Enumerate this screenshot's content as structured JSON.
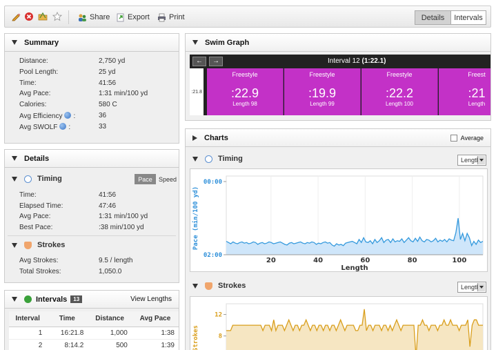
{
  "toolbar": {
    "share_label": "Share",
    "export_label": "Export",
    "print_label": "Print",
    "details_label": "Details",
    "intervals_label": "Intervals",
    "active_tab": "Details"
  },
  "summary": {
    "title": "Summary",
    "rows": [
      {
        "label": "Distance:",
        "value": "2,750 yd"
      },
      {
        "label": "Pool Length:",
        "value": "25 yd"
      },
      {
        "label": "Time:",
        "value": "41:56"
      },
      {
        "label": "Avg Pace:",
        "value": "1:31 min/100 yd"
      },
      {
        "label": "Calories:",
        "value": "580 C"
      },
      {
        "label": "Avg Efficiency",
        "suffix": ":",
        "value": "36"
      },
      {
        "label": "Avg SWOLF",
        "suffix": ":",
        "value": "33"
      }
    ]
  },
  "details": {
    "title": "Details",
    "timing": {
      "title": "Timing",
      "pace_label": "Pace",
      "speed_label": "Speed",
      "rows": [
        {
          "label": "Time:",
          "value": "41:56"
        },
        {
          "label": "Elapsed Time:",
          "value": "47:46"
        },
        {
          "label": "Avg Pace:",
          "value": "1:31 min/100 yd"
        },
        {
          "label": "Best Pace:",
          "value": ":38 min/100 yd"
        }
      ]
    },
    "strokes": {
      "title": "Strokes",
      "rows": [
        {
          "label": "Avg Strokes:",
          "value": "9.5 / length"
        },
        {
          "label": "Total Strokes:",
          "value": "1,050.0"
        }
      ]
    }
  },
  "intervals": {
    "title": "Intervals",
    "count": "13",
    "view_lengths_label": "View Lengths",
    "columns": [
      "Interval",
      "Time",
      "Distance",
      "Avg Pace"
    ],
    "rows": [
      [
        "1",
        "16:21.8",
        "1,000",
        "1:38"
      ],
      [
        "2",
        "8:14.2",
        "500",
        "1:39"
      ]
    ]
  },
  "swim_graph": {
    "title": "Swim Graph",
    "interval_prefix": "Interval 12 ",
    "interval_time": "(1:22.1)",
    "first_cell_time": ":21.8",
    "cells": [
      {
        "stroke": "Freestyle",
        "time": ":22.9",
        "length": "Length 98"
      },
      {
        "stroke": "Freestyle",
        "time": ":19.9",
        "length": "Length 99"
      },
      {
        "stroke": "Freestyle",
        "time": ":22.2",
        "length": "Length 100"
      },
      {
        "stroke": "Freest",
        "time": ":21",
        "length": "Length"
      }
    ]
  },
  "charts": {
    "title": "Charts",
    "average_label": "Average",
    "timing": {
      "title": "Timing",
      "dropdown_value": "Length",
      "ylabel": "Pace (min/100 yd)",
      "xlabel": "Length",
      "y_ticks": [
        "00:00",
        "02:00"
      ],
      "x_ticks": [
        "20",
        "40",
        "60",
        "80",
        "100"
      ]
    },
    "strokes": {
      "title": "Strokes",
      "dropdown_value": "Length",
      "ylabel": "Strokes",
      "y_ticks": [
        "12",
        "8"
      ]
    }
  },
  "chart_data": [
    {
      "type": "area",
      "ylabel": "Pace (min/100 yd)",
      "xlabel": "Length",
      "xlim": [
        1,
        110
      ],
      "ylim_seconds": [
        0,
        120
      ],
      "y_tick_values_seconds": [
        0,
        120
      ],
      "x_tick_values": [
        20,
        40,
        60,
        80,
        100
      ],
      "color": "#3399dd",
      "values_seconds": [
        98,
        100,
        102,
        99,
        101,
        102,
        100,
        99,
        101,
        100,
        102,
        101,
        99,
        100,
        103,
        101,
        100,
        102,
        101,
        99,
        100,
        102,
        101,
        100,
        99,
        101,
        103,
        104,
        101,
        100,
        102,
        101,
        100,
        99,
        101,
        102,
        100,
        101,
        99,
        100,
        103,
        101,
        102,
        100,
        99,
        101,
        100,
        104,
        106,
        102,
        104,
        103,
        105,
        101,
        100,
        99,
        98,
        100,
        102,
        95,
        100,
        92,
        99,
        100,
        97,
        102,
        95,
        100,
        97,
        92,
        100,
        96,
        95,
        100,
        94,
        99,
        97,
        98,
        94,
        100,
        96,
        92,
        97,
        99,
        93,
        98,
        91,
        97,
        99,
        95,
        96,
        99,
        97,
        93,
        99,
        96,
        98,
        95,
        99,
        94,
        96,
        97,
        84,
        60,
        95,
        85,
        97,
        85,
        92,
        105,
        98,
        103,
        96,
        100,
        98
      ]
    },
    {
      "type": "area",
      "ylabel": "Strokes",
      "x_tick_values": [
        20,
        40,
        60,
        80,
        100
      ],
      "ylim": [
        5,
        14
      ],
      "y_tick_values": [
        12,
        8
      ],
      "color": "#d99e1b",
      "values": [
        9,
        9,
        9,
        10,
        10,
        10,
        10,
        10,
        10,
        10,
        10,
        10,
        10,
        10,
        10,
        10,
        10,
        9,
        10,
        10,
        10,
        9,
        11,
        9,
        10,
        10,
        10,
        9,
        10,
        11,
        10,
        9,
        10,
        10,
        9,
        10,
        10,
        11,
        10,
        9,
        10,
        10,
        9,
        10,
        10,
        9,
        10,
        10,
        9,
        10,
        10,
        9,
        10,
        11,
        10,
        9,
        10,
        10,
        10,
        10,
        9,
        9,
        10,
        10,
        13,
        9,
        10,
        10,
        9,
        10,
        10,
        10,
        9,
        10,
        10,
        9,
        10,
        9,
        10,
        11,
        10,
        9,
        10,
        10,
        10,
        10,
        10,
        10,
        4,
        10,
        10,
        11,
        10,
        10,
        9,
        10,
        10,
        10,
        9,
        10,
        10,
        11,
        10,
        10,
        11,
        10,
        10,
        10,
        9,
        10,
        10,
        10,
        11,
        6,
        10,
        11,
        11,
        10,
        10,
        10
      ]
    }
  ]
}
